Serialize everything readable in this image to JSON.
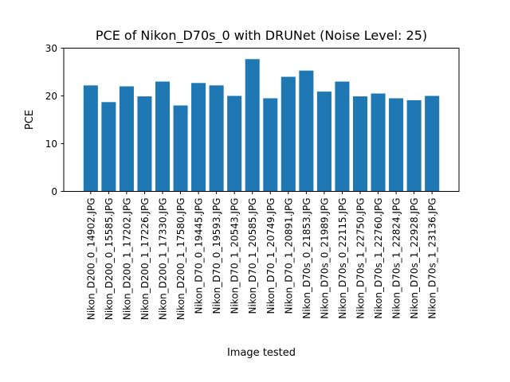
{
  "chart_data": {
    "type": "bar",
    "title": "PCE of Nikon_D70s_0 with DRUNet (Noise Level: 25)",
    "xlabel": "Image tested",
    "ylabel": "PCE",
    "ylim": [
      0,
      30
    ],
    "yticks": [
      0,
      10,
      20,
      30
    ],
    "grid": false,
    "legend": "none",
    "bar_color": "#1f77b4",
    "categories": [
      "Nikon_D200_0_14902.JPG",
      "Nikon_D200_0_15585.JPG",
      "Nikon_D200_1_17202.JPG",
      "Nikon_D200_1_17226.JPG",
      "Nikon_D200_1_17330.JPG",
      "Nikon_D200_1_17580.JPG",
      "Nikon_D70_0_19445.JPG",
      "Nikon_D70_0_19593.JPG",
      "Nikon_D70_1_20543.JPG",
      "Nikon_D70_1_20585.JPG",
      "Nikon_D70_1_20749.JPG",
      "Nikon_D70_1_20891.JPG",
      "Nikon_D70s_0_21853.JPG",
      "Nikon_D70s_0_21989.JPG",
      "Nikon_D70s_0_22115.JPG",
      "Nikon_D70s_1_22750.JPG",
      "Nikon_D70s_1_22760.JPG",
      "Nikon_D70s_1_22824.JPG",
      "Nikon_D70s_1_22928.JPG",
      "Nikon_D70s_1_23136.JPG"
    ],
    "values": [
      22.2,
      18.7,
      22.0,
      19.9,
      23.0,
      18.0,
      22.7,
      22.2,
      20.0,
      27.7,
      19.5,
      24.0,
      25.3,
      20.9,
      23.0,
      19.9,
      20.5,
      19.5,
      19.1,
      20.0
    ]
  }
}
